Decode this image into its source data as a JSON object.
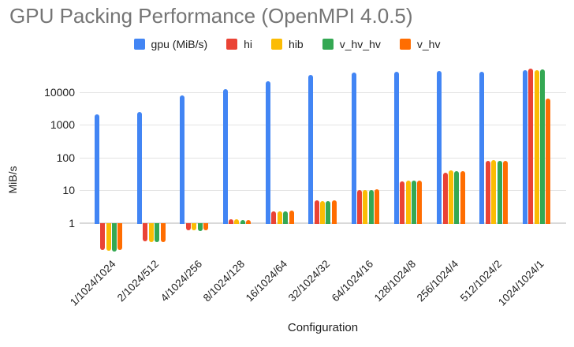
{
  "chart_data": {
    "type": "bar",
    "title": "GPU Packing Performance (OpenMPI 4.0.5)",
    "xlabel": "Configuration",
    "ylabel": "MiB/s",
    "y_scale": "log",
    "y_ticks": [
      "10000",
      "1000",
      "100",
      "10",
      "1"
    ],
    "ylim": [
      0.1,
      60000
    ],
    "grid": true,
    "legend_position": "top",
    "background_color": "#ffffff",
    "title_color": "#757575",
    "gridline_color": "#e3e3e3",
    "categories": [
      "1/1024/1024",
      "2/1024/512",
      "4/1024/256",
      "8/1024/128",
      "16/1024/64",
      "32/1024/32",
      "64/1024/16",
      "128/1024/8",
      "256/1024/4",
      "512/1024/2",
      "1024/1024/1"
    ],
    "series": [
      {
        "name": "gpu (MiB/s)",
        "color": "#4285F4",
        "values": [
          2050,
          2450,
          7800,
          12400,
          21500,
          33000,
          39500,
          41500,
          44000,
          42000,
          47000
        ]
      },
      {
        "name": "hi",
        "color": "#EA4335",
        "values": [
          0.15,
          0.27,
          0.6,
          1.25,
          2.3,
          5.0,
          10,
          19,
          35,
          77,
          52000
        ]
      },
      {
        "name": "hib",
        "color": "#FBBC04",
        "values": [
          0.14,
          0.25,
          0.6,
          1.25,
          2.3,
          4.6,
          10,
          20,
          40,
          82,
          47000
        ]
      },
      {
        "name": "v_hv_hv",
        "color": "#34A853",
        "values": [
          0.13,
          0.25,
          0.57,
          1.2,
          2.3,
          4.6,
          10,
          20,
          38,
          77,
          50000
        ]
      },
      {
        "name": "v_hv",
        "color": "#FF6D01",
        "values": [
          0.15,
          0.26,
          0.6,
          1.2,
          2.4,
          5.0,
          10.5,
          20,
          38,
          80,
          6300
        ]
      }
    ]
  }
}
